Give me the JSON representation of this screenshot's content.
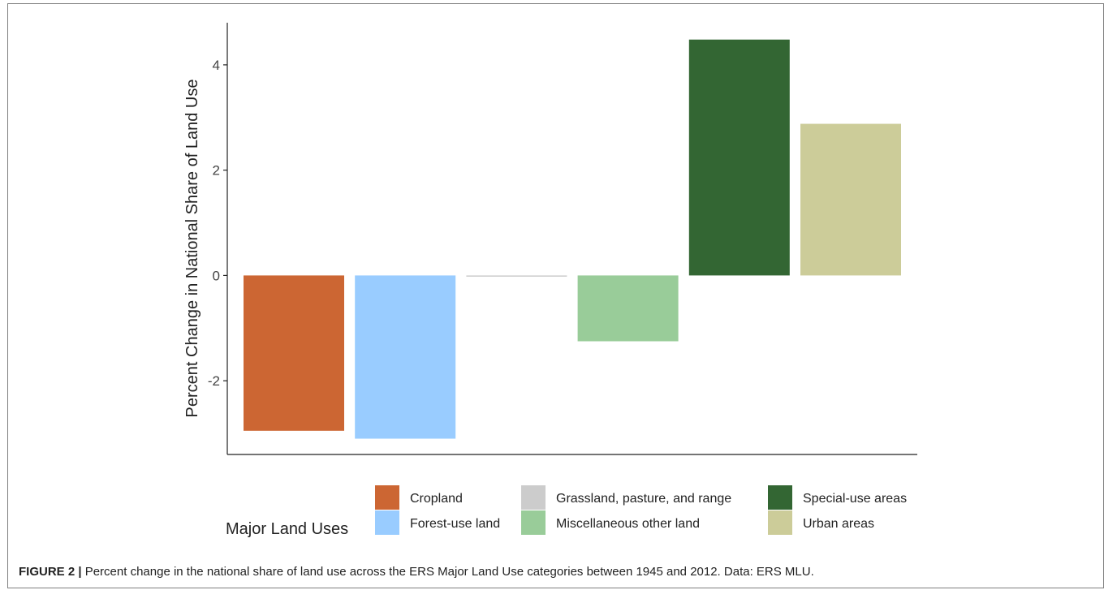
{
  "chart_data": {
    "type": "bar",
    "ylabel": "Percent Change in National Share of Land Use",
    "xlabel": "",
    "ylim": [
      -3.4,
      4.8
    ],
    "yticks": [
      -2,
      0,
      2,
      4
    ],
    "ytick_labels": [
      "-2",
      "0",
      "2",
      "4"
    ],
    "categories": [
      "Cropland",
      "Forest-use land",
      "Grassland, pasture, and range",
      "Miscellaneous other land",
      "Special-use areas",
      "Urban areas"
    ],
    "values": [
      -2.95,
      -3.1,
      -0.02,
      -1.25,
      4.48,
      2.88
    ],
    "colors": [
      "#cc6633",
      "#99ccff",
      "#cccccc",
      "#99cc99",
      "#336633",
      "#cccc99"
    ],
    "legend_title": "Major Land Uses",
    "legend_placement": "bottom",
    "grid": false
  },
  "caption": {
    "label": "FIGURE 2 |",
    "text": " Percent change in the national share of land use across the ERS Major Land Use categories between 1945 and 2012. Data: ERS MLU."
  }
}
